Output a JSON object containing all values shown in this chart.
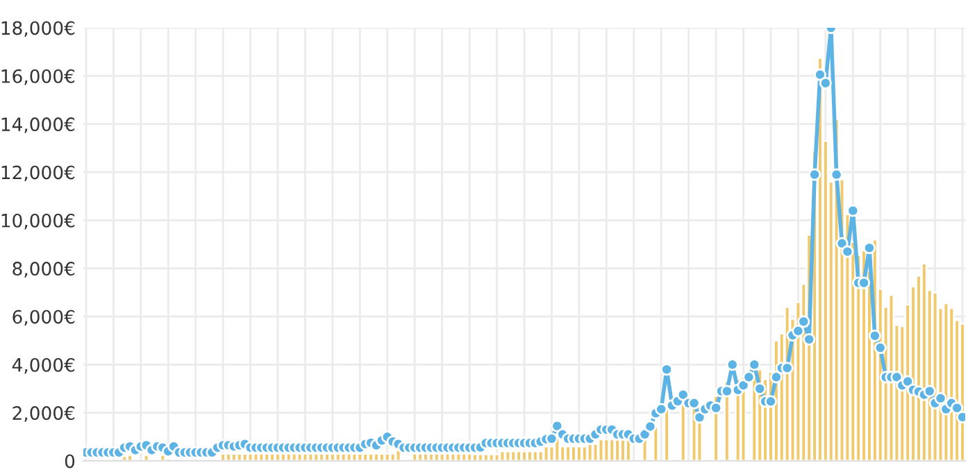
{
  "chart_data": {
    "type": "bar",
    "categories": [
      null,
      null,
      null,
      null,
      null,
      null,
      null,
      null,
      null,
      null,
      null,
      null,
      null,
      null,
      null,
      null,
      null,
      null,
      null,
      null,
      null,
      null,
      null,
      null,
      null,
      null,
      null,
      null,
      null,
      null,
      null,
      null,
      null,
      null,
      null,
      null,
      null,
      null,
      null,
      null,
      null,
      null,
      null,
      null,
      null,
      null,
      null,
      null,
      null,
      null,
      null,
      null,
      null,
      null,
      null,
      null,
      null,
      null,
      null,
      null,
      null,
      null,
      null,
      null,
      null,
      null,
      null,
      null,
      null,
      null,
      null,
      null,
      null,
      null,
      null,
      null,
      null,
      null,
      null,
      null,
      null,
      null,
      null,
      null,
      null,
      null,
      null,
      null,
      null,
      null,
      null,
      null,
      null,
      null,
      null,
      null,
      null,
      null,
      null,
      null,
      null,
      null,
      null,
      null,
      null,
      null,
      null,
      null,
      null,
      null,
      null,
      null,
      null,
      null,
      null,
      null,
      null,
      null,
      null,
      null,
      null,
      null,
      null,
      null,
      null,
      null,
      null,
      null,
      null,
      null,
      null,
      null,
      null,
      null,
      null,
      null,
      null,
      null,
      null,
      null,
      null,
      null,
      null,
      null,
      null,
      null,
      null,
      null,
      null,
      null,
      null,
      null,
      null,
      null,
      null,
      null,
      null,
      null,
      null,
      null,
      null
    ],
    "series": [
      {
        "color": "#f0c96c",
        "values": [
          null,
          null,
          null,
          null,
          null,
          null,
          null,
          200,
          250,
          null,
          null,
          250,
          null,
          null,
          250,
          100,
          null,
          null,
          null,
          null,
          null,
          null,
          null,
          null,
          null,
          300,
          300,
          300,
          300,
          300,
          300,
          300,
          300,
          300,
          300,
          300,
          300,
          300,
          300,
          300,
          300,
          300,
          300,
          300,
          300,
          300,
          300,
          300,
          300,
          300,
          300,
          300,
          300,
          300,
          300,
          300,
          300,
          450,
          null,
          null,
          300,
          300,
          300,
          300,
          300,
          300,
          300,
          300,
          300,
          300,
          300,
          280,
          280,
          280,
          280,
          280,
          400,
          400,
          400,
          400,
          400,
          400,
          400,
          400,
          600,
          600,
          1000,
          600,
          600,
          600,
          600,
          600,
          700,
          700,
          900,
          900,
          900,
          900,
          900,
          900,
          null,
          null,
          1000,
          null,
          1400,
          null,
          2300,
          null,
          null,
          2500,
          null,
          2300,
          2300,
          null,
          null,
          2700,
          null,
          3300,
          null,
          3400,
          3500,
          null,
          3500,
          3800,
          3400,
          3700,
          5000,
          5300,
          6400,
          5900,
          6600,
          7350,
          9400,
          12900,
          16750,
          13300,
          11600,
          14200,
          11700,
          10250,
          9100,
          8550,
          8750,
          7900,
          9200,
          7150,
          6400,
          6900,
          5650,
          5600,
          6500,
          7250,
          7700,
          8200,
          7100,
          7000,
          6350,
          6550,
          6350,
          5850,
          5700
        ]
      },
      {
        "type": "line",
        "color": "#5cb3e4",
        "values": [
          350,
          350,
          350,
          350,
          350,
          350,
          350,
          550,
          600,
          450,
          600,
          650,
          450,
          600,
          550,
          400,
          600,
          350,
          350,
          350,
          350,
          350,
          350,
          350,
          550,
          650,
          650,
          600,
          650,
          700,
          550,
          550,
          550,
          550,
          550,
          550,
          550,
          550,
          550,
          550,
          550,
          550,
          550,
          550,
          550,
          550,
          550,
          550,
          550,
          550,
          550,
          700,
          750,
          650,
          850,
          1000,
          800,
          700,
          550,
          550,
          550,
          550,
          550,
          550,
          550,
          550,
          550,
          550,
          550,
          550,
          550,
          550,
          560,
          740,
          740,
          740,
          740,
          740,
          740,
          740,
          740,
          740,
          740,
          800,
          900,
          920,
          1450,
          1100,
          920,
          920,
          920,
          920,
          920,
          1100,
          1300,
          1300,
          1300,
          1100,
          1100,
          1100,
          920,
          920,
          1100,
          1430,
          1980,
          2150,
          3800,
          2300,
          2480,
          2750,
          2400,
          2400,
          1810,
          2150,
          2300,
          2200,
          2900,
          2900,
          4000,
          2950,
          3140,
          3480,
          4000,
          3000,
          2470,
          2470,
          3480,
          3860,
          3860,
          5220,
          5400,
          5790,
          5050,
          11900,
          16050,
          15700,
          18000,
          11900,
          9040,
          8700,
          10400,
          7400,
          7400,
          8850,
          5200,
          4700,
          3480,
          3480,
          3480,
          3140,
          3300,
          2950,
          2880,
          2750,
          2900,
          2400,
          2600,
          2150,
          2400,
          2200,
          1820
        ]
      }
    ],
    "ylim": [
      0,
      18000
    ],
    "yticks": [
      0,
      {
        "value": 2000,
        "label": "2,000€"
      },
      {
        "value": 4000,
        "label": "4,000€"
      },
      {
        "value": 6000,
        "label": "6,000€"
      },
      {
        "value": 8000,
        "label": "8,000€"
      },
      {
        "value": 10000,
        "label": "10,000€"
      },
      {
        "value": 12000,
        "label": "12,000€"
      },
      {
        "value": 14000,
        "label": "14,000€"
      },
      {
        "value": 16000,
        "label": "16,000€"
      },
      {
        "value": 18000,
        "label": "18,000€"
      }
    ],
    "tick_labels": "y",
    "grid": true,
    "marker": "circle",
    "legend": false
  }
}
